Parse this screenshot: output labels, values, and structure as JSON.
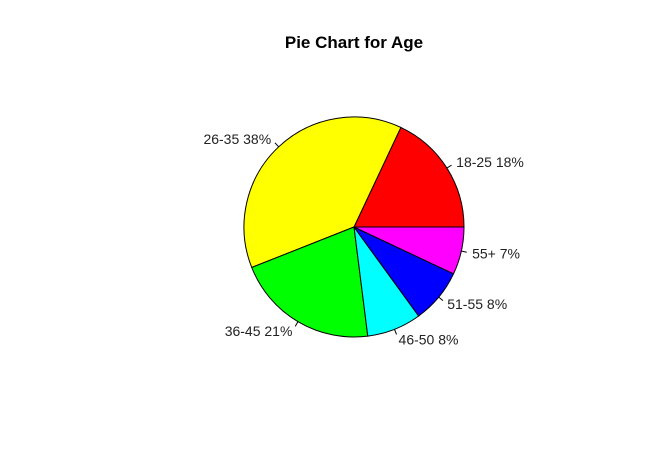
{
  "chart_data": {
    "type": "pie",
    "title": "Pie Chart for Age",
    "slices": [
      {
        "category": "18-25",
        "label": "18-25 18%",
        "value": 18,
        "color": "#FF0000"
      },
      {
        "category": "26-35",
        "label": "26-35 38%",
        "value": 38,
        "color": "#FFFF00"
      },
      {
        "category": "36-45",
        "label": "36-45 21%",
        "value": 21,
        "color": "#00FF00"
      },
      {
        "category": "46-50",
        "label": "46-50 8%",
        "value": 8,
        "color": "#00FFFF"
      },
      {
        "category": "51-55",
        "label": "51-55 8%",
        "value": 8,
        "color": "#0000FF"
      },
      {
        "category": "55+",
        "label": "55+ 7%",
        "value": 7,
        "color": "#FF00FF"
      }
    ],
    "direction": "counterclockwise",
    "legend": "none"
  }
}
